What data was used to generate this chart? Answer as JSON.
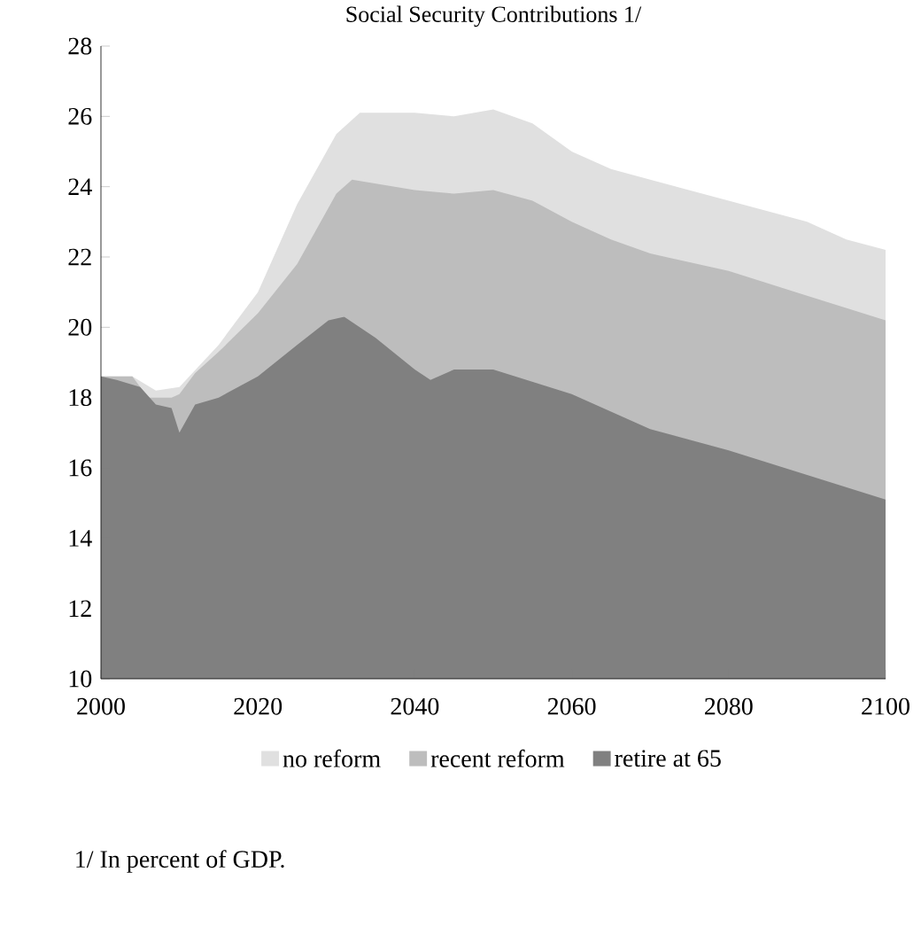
{
  "chart_data": {
    "type": "area",
    "title": "Social Security Contributions 1/",
    "annotations": [
      "1/ In percent of GDP."
    ],
    "legend": "bottom",
    "grid": false,
    "xlim": [
      2000,
      2100
    ],
    "xticks": [
      2000,
      2020,
      2040,
      2060,
      2080,
      2100
    ],
    "ylim": [
      10,
      28
    ],
    "yticks": [
      10,
      12,
      14,
      16,
      18,
      20,
      22,
      24,
      26,
      28
    ],
    "series": [
      {
        "name": "no reform",
        "color": "#e0e0e0",
        "x": [
          2000,
          2004,
          2007,
          2010,
          2015,
          2020,
          2025,
          2030,
          2033,
          2040,
          2045,
          2050,
          2055,
          2060,
          2065,
          2070,
          2080,
          2090,
          2095,
          2100
        ],
        "values": [
          18.6,
          18.6,
          18.2,
          18.3,
          19.5,
          21.0,
          23.5,
          25.5,
          26.1,
          26.1,
          26.0,
          26.2,
          25.8,
          25.0,
          24.5,
          24.2,
          23.6,
          23.0,
          22.5,
          22.2
        ]
      },
      {
        "name": "recent reform",
        "color": "#bdbdbd",
        "x": [
          2000,
          2002,
          2004,
          2006,
          2009,
          2010,
          2012,
          2015,
          2020,
          2025,
          2030,
          2032,
          2040,
          2045,
          2050,
          2055,
          2060,
          2065,
          2070,
          2080,
          2090,
          2100
        ],
        "values": [
          18.6,
          18.6,
          18.6,
          18.0,
          18.0,
          18.1,
          18.7,
          19.3,
          20.4,
          21.8,
          23.8,
          24.2,
          23.9,
          23.8,
          23.9,
          23.6,
          23.0,
          22.5,
          22.1,
          21.6,
          20.9,
          20.2
        ]
      },
      {
        "name": "retire at 65",
        "color": "#808080",
        "x": [
          2000,
          2002,
          2005,
          2007,
          2009,
          2010,
          2012,
          2015,
          2020,
          2025,
          2029,
          2031,
          2035,
          2040,
          2042,
          2045,
          2050,
          2060,
          2070,
          2080,
          2090,
          2100
        ],
        "values": [
          18.6,
          18.5,
          18.3,
          17.8,
          17.7,
          17.0,
          17.8,
          18.0,
          18.6,
          19.5,
          20.2,
          20.3,
          19.7,
          18.8,
          18.5,
          18.8,
          18.8,
          18.1,
          17.1,
          16.5,
          15.8,
          15.1
        ]
      }
    ]
  }
}
